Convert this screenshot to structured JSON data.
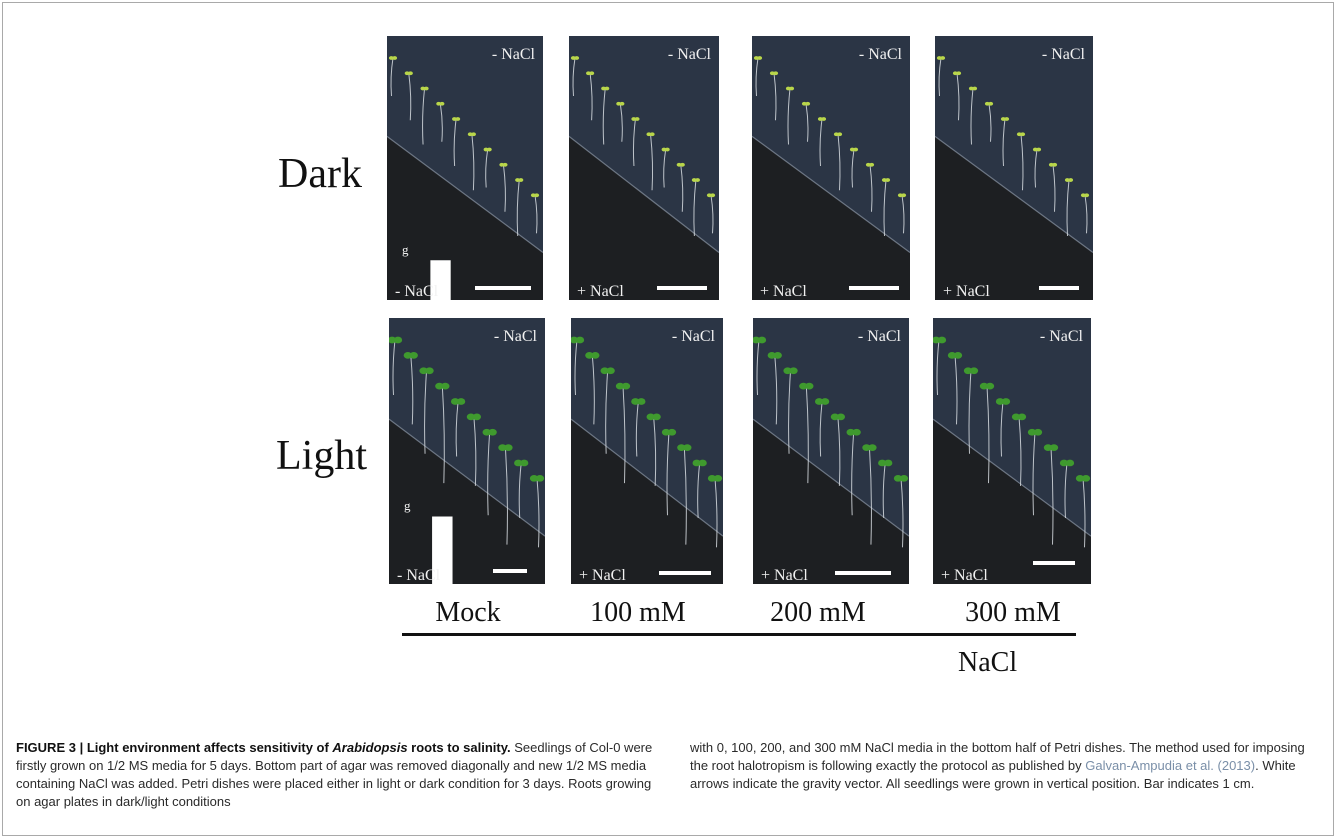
{
  "figure": {
    "rows": [
      {
        "label": "Dark",
        "scale_label_g": "g",
        "panels": [
          {
            "top_label": "- NaCl",
            "bottom_label": "- NaCl"
          },
          {
            "top_label": "- NaCl",
            "bottom_label": "+ NaCl"
          },
          {
            "top_label": "- NaCl",
            "bottom_label": "+ NaCl"
          },
          {
            "top_label": "- NaCl",
            "bottom_label": "+ NaCl"
          }
        ]
      },
      {
        "label": "Light",
        "scale_label_g": "g",
        "panels": [
          {
            "top_label": "- NaCl",
            "bottom_label": "- NaCl"
          },
          {
            "top_label": "- NaCl",
            "bottom_label": "+ NaCl"
          },
          {
            "top_label": "- NaCl",
            "bottom_label": "+ NaCl"
          },
          {
            "top_label": "- NaCl",
            "bottom_label": "+ NaCl"
          }
        ]
      }
    ],
    "columns": [
      "Mock",
      "100 mM",
      "200 mM",
      "300 mM"
    ],
    "axis_label": "NaCl"
  },
  "caption": {
    "title_part1": "FIGURE 3 | Light environment affects sensitivity of ",
    "title_italic": "Arabidopsis",
    "title_part2": " roots to salinity.",
    "left_text": " Seedlings of Col-0 were firstly grown on 1/2 MS media for 5 days. Bottom part of agar was removed diagonally and new 1/2 MS media containing NaCl was added. Petri dishes were placed either in light or dark condition for 3 days. Roots growing on agar plates in dark/light conditions",
    "right_text_1": "with 0, 100, 200, and 300 mM NaCl media in the bottom half of Petri dishes. The method used for imposing the root halotropism is following exactly the protocol as published by ",
    "right_link": "Galvan-Ampudia et al. (2013)",
    "right_text_2": ". White arrows indicate the gravity vector. All seedlings were grown in vertical position. Bar indicates 1 cm."
  },
  "colors": {
    "panel_top": "#2b3545",
    "panel_bottom": "#1d1f22",
    "dark_seedling": "#b9d64a",
    "light_seedling": "#3f9a2e"
  }
}
